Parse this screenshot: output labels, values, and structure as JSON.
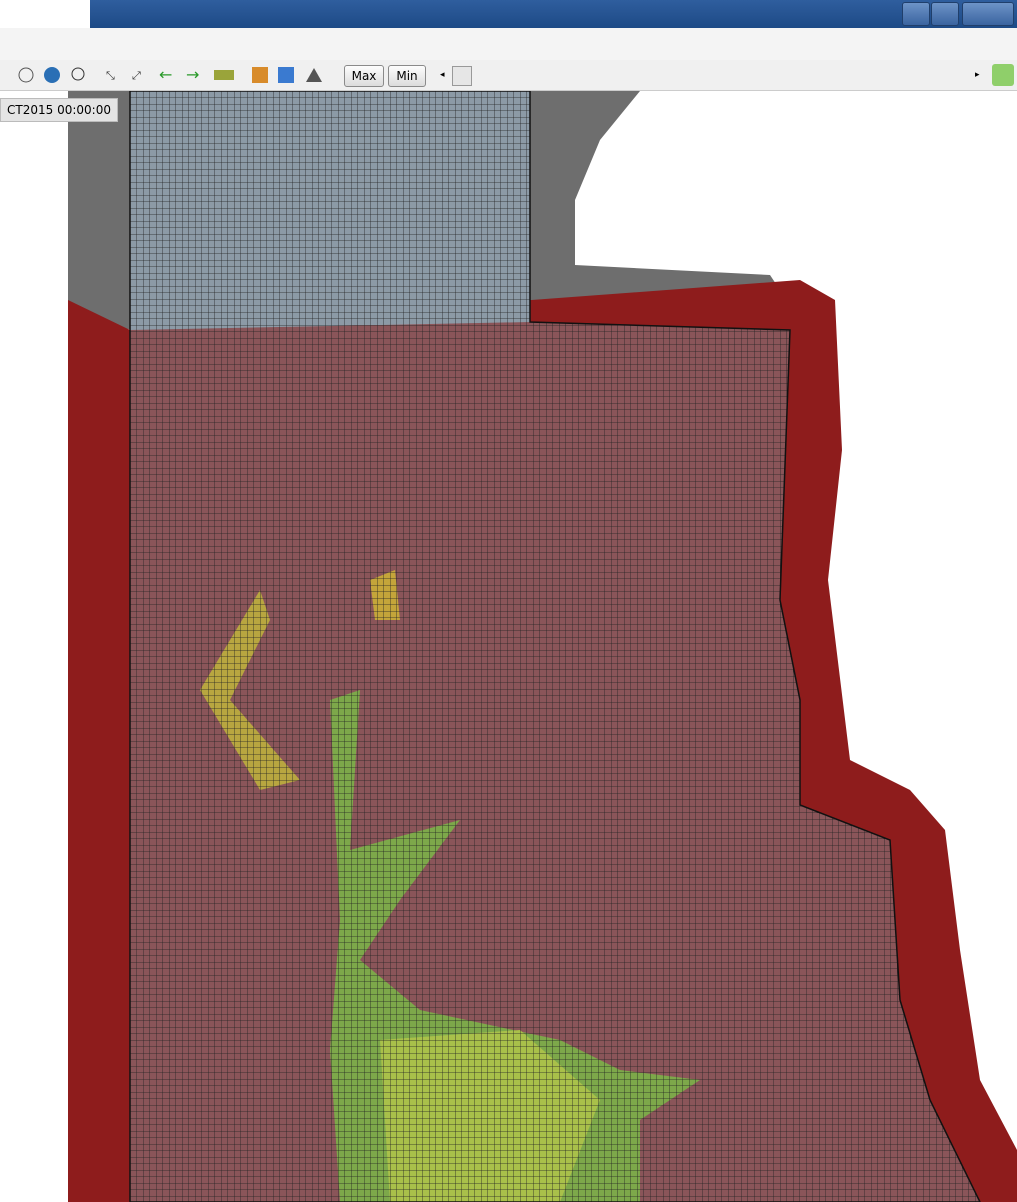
{
  "toolbar": {
    "buttons": [
      "Max",
      "Min"
    ]
  },
  "map": {
    "timestamp": "CT2015 00:00:00"
  }
}
